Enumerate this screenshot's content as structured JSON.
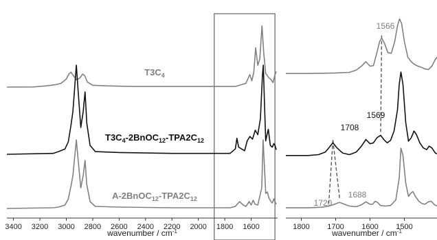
{
  "chart_data": [
    {
      "type": "line",
      "panel": "full",
      "xlabel": "wavenumber / cm",
      "xlabel_sup": "-1",
      "xlim": [
        3450,
        1400
      ],
      "x_reversed": true,
      "xticks": [
        3400,
        3200,
        3000,
        2800,
        2600,
        2400,
        2200,
        2000,
        1800,
        1600
      ],
      "y_axis": "none",
      "grid": false,
      "highlight_box": {
        "x_range": [
          1880,
          1420
        ]
      },
      "series": [
        {
          "label_parts": [
            [
              "T3C",
              ""
            ],
            [
              "4",
              "sub"
            ]
          ],
          "color": "#808080",
          "points": [
            [
              3450,
              0
            ],
            [
              3250,
              0.2
            ],
            [
              3150,
              2
            ],
            [
              3080,
              4
            ],
            [
              3040,
              6
            ],
            [
              3000,
              13
            ],
            [
              2980,
              21
            ],
            [
              2965,
              24
            ],
            [
              2945,
              18
            ],
            [
              2925,
              12
            ],
            [
              2900,
              14
            ],
            [
              2875,
              21
            ],
            [
              2860,
              18
            ],
            [
              2840,
              8
            ],
            [
              2800,
              3
            ],
            [
              2700,
              2
            ],
            [
              2500,
              1
            ],
            [
              2200,
              1
            ],
            [
              1900,
              1
            ],
            [
              1720,
              1
            ],
            [
              1640,
              6
            ],
            [
              1610,
              20
            ],
            [
              1595,
              10
            ],
            [
              1580,
              24
            ],
            [
              1566,
              63
            ],
            [
              1550,
              35
            ],
            [
              1535,
              45
            ],
            [
              1518,
              98
            ],
            [
              1505,
              55
            ],
            [
              1490,
              22
            ],
            [
              1470,
              16
            ],
            [
              1450,
              12
            ],
            [
              1435,
              7
            ],
            [
              1420,
              20
            ],
            [
              1410,
              25
            ]
          ],
          "scale": 0.7
        },
        {
          "label_parts": [
            [
              "T3C",
              ""
            ],
            [
              "4",
              "sub"
            ],
            [
              "-2BnOC",
              ""
            ],
            [
              "12",
              "sub"
            ],
            [
              "-TPA2C",
              ""
            ],
            [
              "12",
              "sub"
            ]
          ],
          "color": "#111111",
          "points": [
            [
              3450,
              0
            ],
            [
              3100,
              1
            ],
            [
              3060,
              3
            ],
            [
              3010,
              6
            ],
            [
              2985,
              14
            ],
            [
              2965,
              32
            ],
            [
              2950,
              48
            ],
            [
              2935,
              78
            ],
            [
              2924,
              100
            ],
            [
              2910,
              70
            ],
            [
              2890,
              30
            ],
            [
              2872,
              48
            ],
            [
              2858,
              70
            ],
            [
              2845,
              35
            ],
            [
              2820,
              10
            ],
            [
              2780,
              3
            ],
            [
              2600,
              2
            ],
            [
              2200,
              1
            ],
            [
              1900,
              1
            ],
            [
              1760,
              1
            ],
            [
              1720,
              6
            ],
            [
              1708,
              18
            ],
            [
              1695,
              8
            ],
            [
              1650,
              4
            ],
            [
              1630,
              15
            ],
            [
              1610,
              20
            ],
            [
              1590,
              17
            ],
            [
              1569,
              27
            ],
            [
              1550,
              22
            ],
            [
              1530,
              40
            ],
            [
              1515,
              88
            ],
            [
              1508,
              100
            ],
            [
              1500,
              60
            ],
            [
              1490,
              15
            ],
            [
              1480,
              22
            ],
            [
              1470,
              28
            ],
            [
              1455,
              10
            ],
            [
              1440,
              8
            ],
            [
              1428,
              12
            ],
            [
              1420,
              10
            ],
            [
              1410,
              5
            ]
          ],
          "scale": 1.0
        },
        {
          "label_parts": [
            [
              "A-2BnOC",
              ""
            ],
            [
              "12",
              "sub"
            ],
            [
              "-TPA2C",
              ""
            ],
            [
              "12",
              "sub"
            ]
          ],
          "color": "#808080",
          "points": [
            [
              3450,
              0
            ],
            [
              3100,
              1
            ],
            [
              3060,
              2
            ],
            [
              3010,
              5
            ],
            [
              2985,
              14
            ],
            [
              2965,
              32
            ],
            [
              2950,
              48
            ],
            [
              2935,
              78
            ],
            [
              2924,
              100
            ],
            [
              2910,
              70
            ],
            [
              2890,
              30
            ],
            [
              2872,
              48
            ],
            [
              2858,
              70
            ],
            [
              2845,
              35
            ],
            [
              2820,
              10
            ],
            [
              2780,
              3
            ],
            [
              2600,
              2
            ],
            [
              2200,
              1
            ],
            [
              1900,
              1
            ],
            [
              1760,
              1
            ],
            [
              1720,
              3
            ],
            [
              1688,
              10
            ],
            [
              1660,
              5
            ],
            [
              1640,
              3
            ],
            [
              1615,
              10
            ],
            [
              1600,
              5
            ],
            [
              1585,
              12
            ],
            [
              1570,
              6
            ],
            [
              1550,
              5
            ],
            [
              1520,
              30
            ],
            [
              1510,
              100
            ],
            [
              1500,
              62
            ],
            [
              1490,
              22
            ],
            [
              1478,
              24
            ],
            [
              1465,
              15
            ],
            [
              1450,
              10
            ],
            [
              1440,
              8
            ],
            [
              1428,
              14
            ],
            [
              1420,
              10
            ],
            [
              1410,
              6
            ]
          ],
          "scale": 1.0
        }
      ]
    },
    {
      "type": "line",
      "panel": "zoom",
      "xlabel": "wavenumber / cm",
      "xlabel_sup": "-1",
      "xlim": [
        1845,
        1405
      ],
      "x_reversed": true,
      "xticks": [
        1800,
        1700,
        1600,
        1500
      ],
      "y_axis": "none",
      "grid": false,
      "annotations": [
        {
          "text": "1566",
          "color": "#808080"
        },
        {
          "text": "1569",
          "color": "#111111"
        },
        {
          "text": "1708",
          "color": "#111111"
        },
        {
          "text": "1720",
          "color": "#808080"
        },
        {
          "text": "1688",
          "color": "#808080"
        }
      ],
      "dashed_links": [
        {
          "from": {
            "series": 0,
            "x": 1566
          },
          "to": {
            "series": 1,
            "x": 1569
          }
        },
        {
          "from": {
            "series": 1,
            "x": 1708
          },
          "to": {
            "series": 2,
            "x": 1720
          }
        },
        {
          "from": {
            "series": 1,
            "x": 1708
          },
          "to": {
            "series": 2,
            "x": 1688
          }
        }
      ],
      "series": [
        {
          "color": "#808080",
          "points": [
            [
              1845,
              1
            ],
            [
              1780,
              1
            ],
            [
              1700,
              2
            ],
            [
              1660,
              3
            ],
            [
              1640,
              7
            ],
            [
              1625,
              14
            ],
            [
              1612,
              22
            ],
            [
              1600,
              14
            ],
            [
              1590,
              15
            ],
            [
              1580,
              38
            ],
            [
              1572,
              58
            ],
            [
              1566,
              64
            ],
            [
              1558,
              55
            ],
            [
              1548,
              38
            ],
            [
              1538,
              37
            ],
            [
              1528,
              58
            ],
            [
              1520,
              86
            ],
            [
              1514,
              98
            ],
            [
              1508,
              90
            ],
            [
              1500,
              58
            ],
            [
              1490,
              30
            ],
            [
              1480,
              22
            ],
            [
              1470,
              17
            ],
            [
              1460,
              14
            ],
            [
              1450,
              12
            ],
            [
              1440,
              9
            ],
            [
              1430,
              8
            ],
            [
              1420,
              14
            ],
            [
              1410,
              26
            ],
            [
              1405,
              30
            ]
          ]
        },
        {
          "color": "#111111",
          "points": [
            [
              1845,
              1
            ],
            [
              1780,
              1
            ],
            [
              1750,
              2
            ],
            [
              1730,
              5
            ],
            [
              1720,
              10
            ],
            [
              1708,
              16
            ],
            [
              1696,
              10
            ],
            [
              1680,
              4
            ],
            [
              1660,
              2
            ],
            [
              1640,
              5
            ],
            [
              1625,
              12
            ],
            [
              1612,
              20
            ],
            [
              1600,
              15
            ],
            [
              1590,
              16
            ],
            [
              1580,
              22
            ],
            [
              1569,
              25
            ],
            [
              1560,
              20
            ],
            [
              1550,
              16
            ],
            [
              1540,
              19
            ],
            [
              1530,
              30
            ],
            [
              1520,
              55
            ],
            [
              1515,
              85
            ],
            [
              1510,
              100
            ],
            [
              1504,
              85
            ],
            [
              1496,
              40
            ],
            [
              1488,
              18
            ],
            [
              1480,
              22
            ],
            [
              1472,
              30
            ],
            [
              1465,
              26
            ],
            [
              1455,
              16
            ],
            [
              1445,
              10
            ],
            [
              1435,
              8
            ],
            [
              1428,
              12
            ],
            [
              1420,
              10
            ],
            [
              1410,
              4
            ],
            [
              1405,
              3
            ]
          ]
        },
        {
          "color": "#808080",
          "points": [
            [
              1845,
              1
            ],
            [
              1780,
              1
            ],
            [
              1740,
              2
            ],
            [
              1720,
              4
            ],
            [
              1708,
              6
            ],
            [
              1695,
              9
            ],
            [
              1688,
              10
            ],
            [
              1675,
              7
            ],
            [
              1660,
              4
            ],
            [
              1640,
              3
            ],
            [
              1625,
              6
            ],
            [
              1612,
              11
            ],
            [
              1600,
              7
            ],
            [
              1592,
              7
            ],
            [
              1585,
              12
            ],
            [
              1578,
              10
            ],
            [
              1570,
              5
            ],
            [
              1555,
              4
            ],
            [
              1540,
              5
            ],
            [
              1525,
              14
            ],
            [
              1515,
              50
            ],
            [
              1510,
              100
            ],
            [
              1504,
              88
            ],
            [
              1496,
              42
            ],
            [
              1488,
              20
            ],
            [
              1480,
              26
            ],
            [
              1475,
              28
            ],
            [
              1468,
              20
            ],
            [
              1458,
              12
            ],
            [
              1448,
              8
            ],
            [
              1440,
              7
            ],
            [
              1430,
              11
            ],
            [
              1422,
              12
            ],
            [
              1412,
              6
            ],
            [
              1405,
              4
            ]
          ]
        }
      ]
    }
  ]
}
